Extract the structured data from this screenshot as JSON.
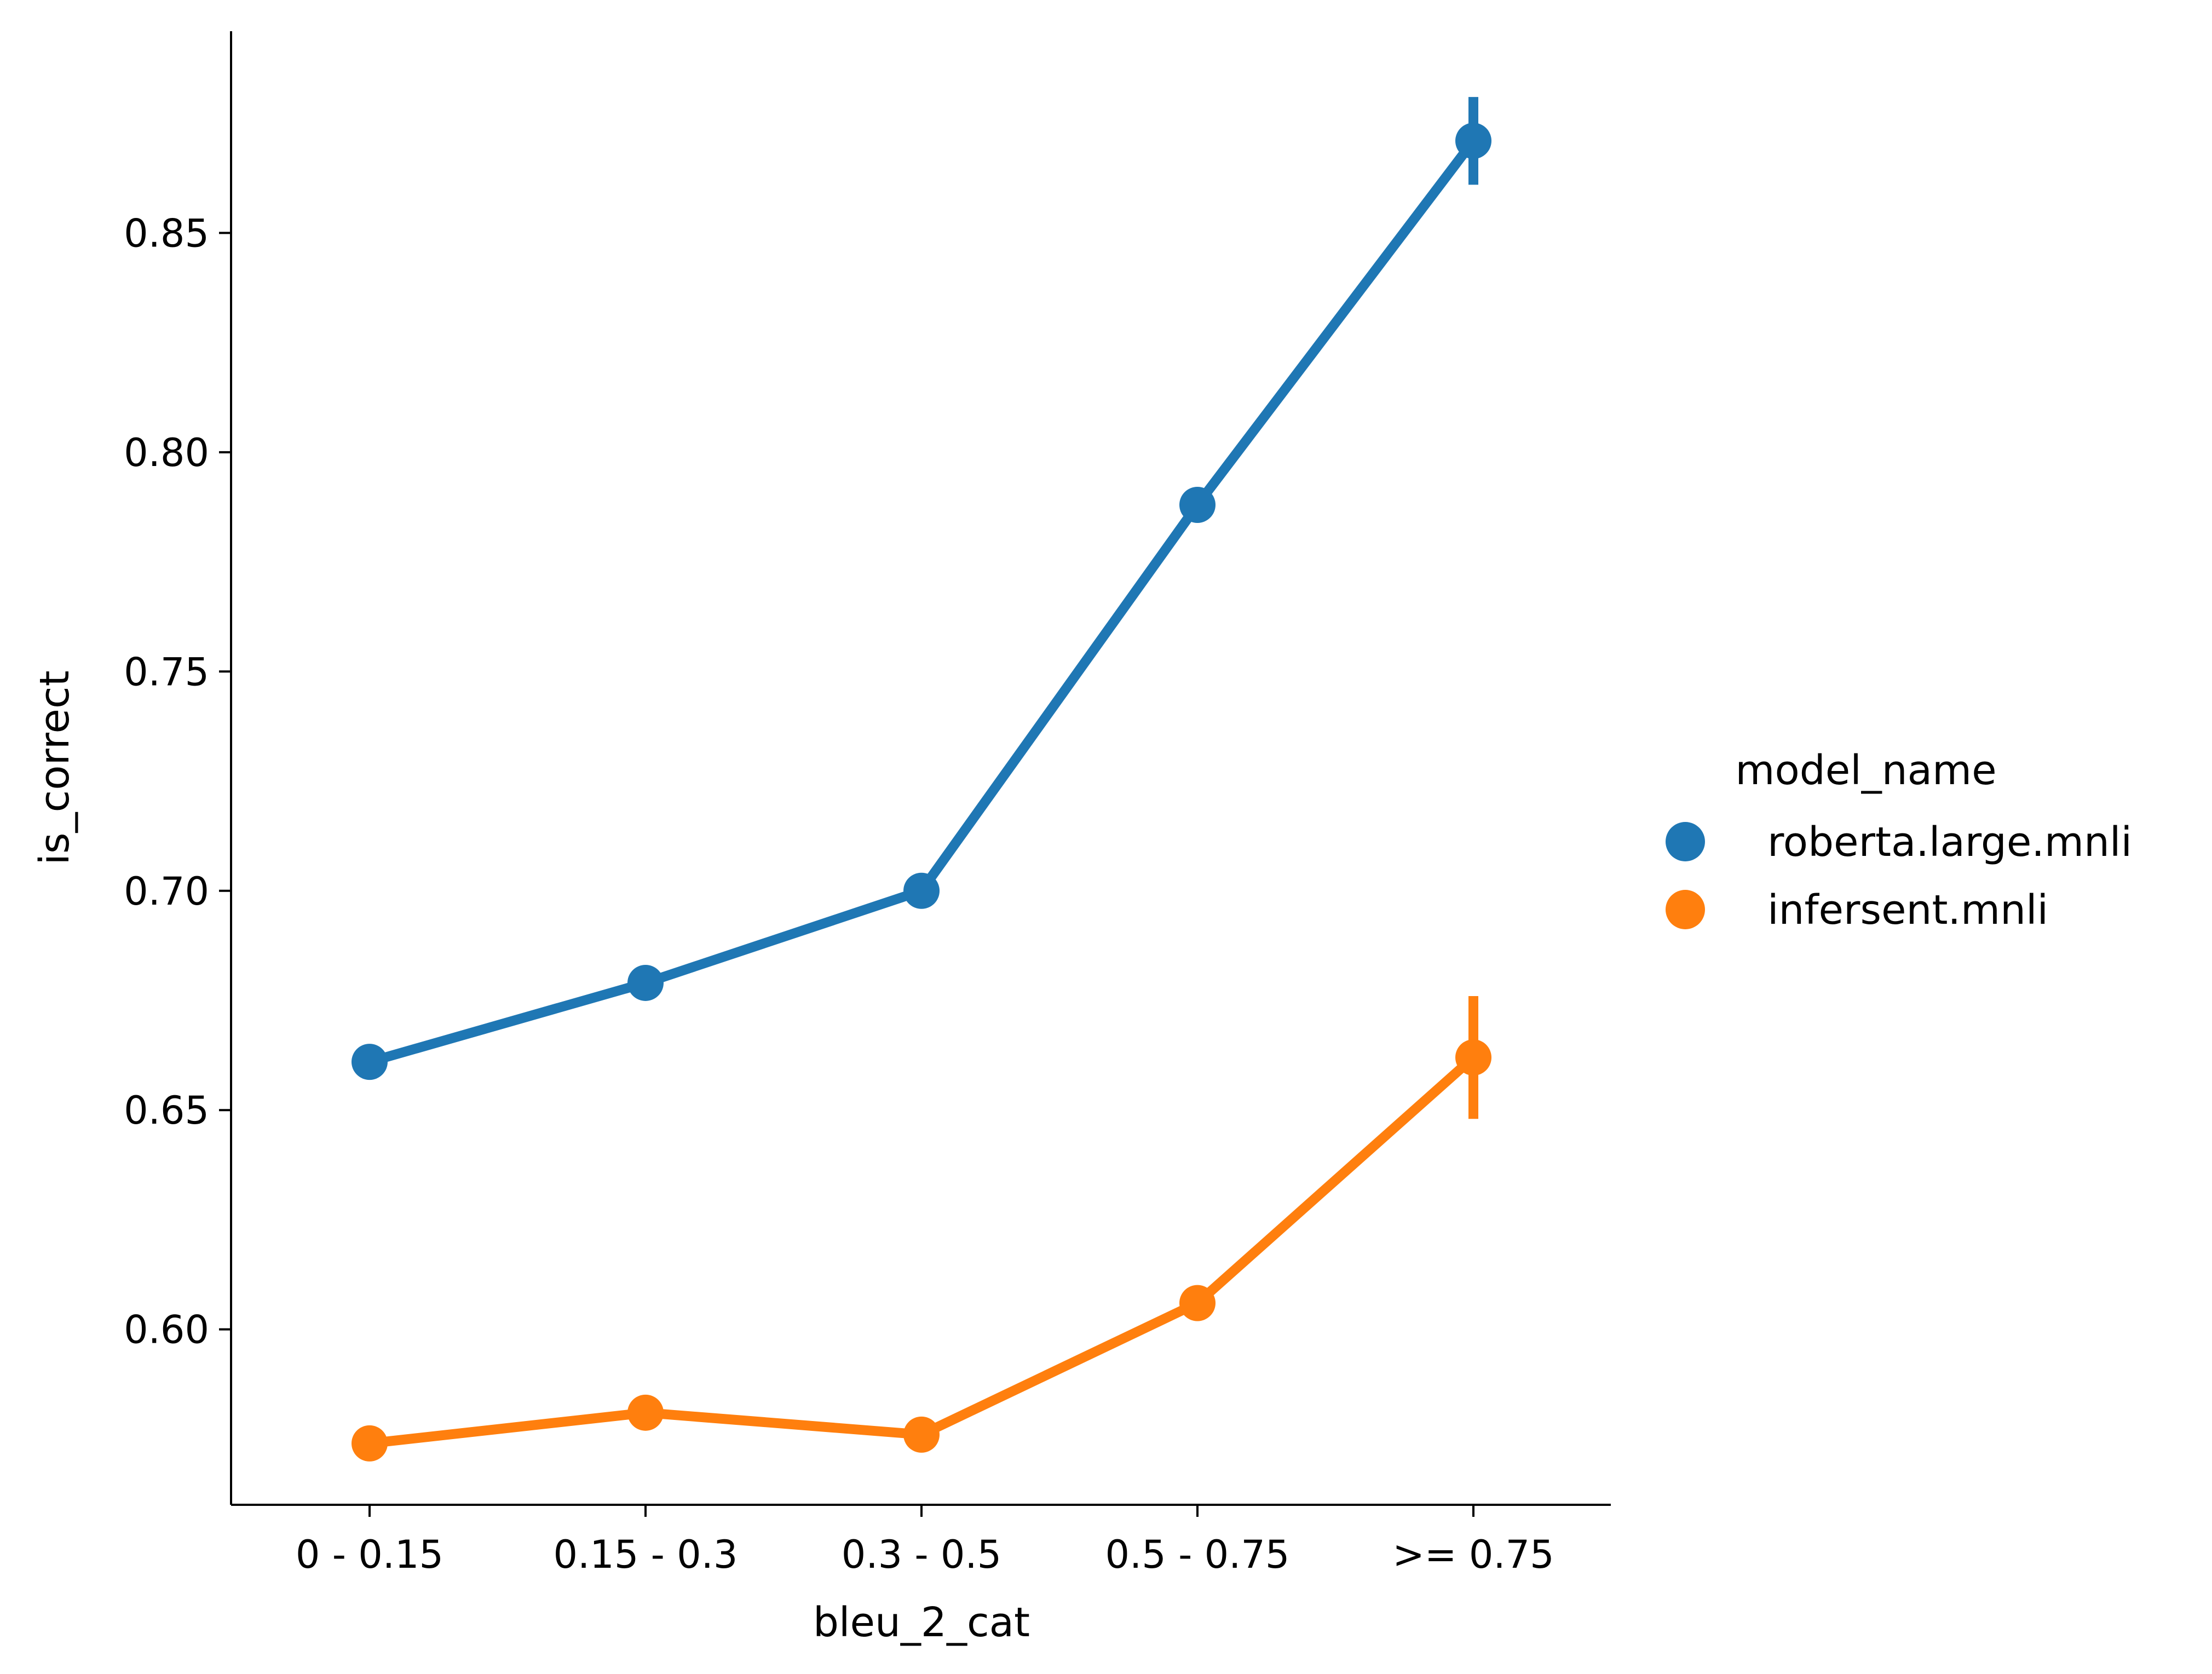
{
  "chart_data": {
    "type": "line",
    "xlabel": "bleu_2_cat",
    "ylabel": "is_correct",
    "categories": [
      "0 - 0.15",
      "0.15 - 0.3",
      "0.3 - 0.5",
      "0.5 - 0.75",
      ">= 0.75"
    ],
    "ylim": [
      0.56,
      0.896
    ],
    "yticks": [
      0.6,
      0.65,
      0.7,
      0.75,
      0.8,
      0.85
    ],
    "ytick_labels": [
      "0.60",
      "0.65",
      "0.70",
      "0.75",
      "0.80",
      "0.85"
    ],
    "grid": false,
    "legend": {
      "title": "model_name",
      "placement": "right"
    },
    "series": [
      {
        "name": "roberta.large.mnli",
        "color": "#1f77b4",
        "values": [
          0.661,
          0.679,
          0.7,
          0.788,
          0.871
        ],
        "ci_low": [
          null,
          null,
          null,
          null,
          0.861
        ],
        "ci_high": [
          null,
          null,
          null,
          null,
          0.881
        ]
      },
      {
        "name": "infersent.mnli",
        "color": "#ff7f0e",
        "values": [
          0.574,
          0.581,
          0.576,
          0.606,
          0.662
        ],
        "ci_low": [
          null,
          null,
          null,
          null,
          0.648
        ],
        "ci_high": [
          null,
          null,
          null,
          null,
          0.676
        ]
      }
    ]
  }
}
